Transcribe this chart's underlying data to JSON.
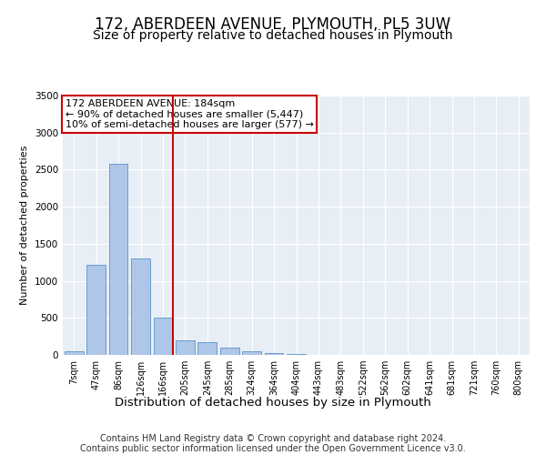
{
  "title": "172, ABERDEEN AVENUE, PLYMOUTH, PL5 3UW",
  "subtitle": "Size of property relative to detached houses in Plymouth",
  "xlabel": "Distribution of detached houses by size in Plymouth",
  "ylabel": "Number of detached properties",
  "categories": [
    "7sqm",
    "47sqm",
    "86sqm",
    "126sqm",
    "166sqm",
    "205sqm",
    "245sqm",
    "285sqm",
    "324sqm",
    "364sqm",
    "404sqm",
    "443sqm",
    "483sqm",
    "522sqm",
    "562sqm",
    "602sqm",
    "641sqm",
    "681sqm",
    "721sqm",
    "760sqm",
    "800sqm"
  ],
  "values": [
    50,
    1220,
    2580,
    1300,
    500,
    200,
    170,
    100,
    50,
    30,
    10,
    5,
    2,
    0,
    0,
    0,
    0,
    0,
    0,
    0,
    0
  ],
  "bar_color": "#aec6e8",
  "bar_edge_color": "#5a96c8",
  "annotation_text": "172 ABERDEEN AVENUE: 184sqm\n← 90% of detached houses are smaller (5,447)\n10% of semi-detached houses are larger (577) →",
  "annotation_box_color": "#ffffff",
  "annotation_box_edge": "#cc0000",
  "ylim": [
    0,
    3500
  ],
  "yticks": [
    0,
    500,
    1000,
    1500,
    2000,
    2500,
    3000,
    3500
  ],
  "plot_bg_color": "#e8eef5",
  "footer": "Contains HM Land Registry data © Crown copyright and database right 2024.\nContains public sector information licensed under the Open Government Licence v3.0.",
  "title_fontsize": 12,
  "subtitle_fontsize": 10,
  "xlabel_fontsize": 9.5,
  "ylabel_fontsize": 8,
  "footer_fontsize": 7,
  "annotation_fontsize": 8,
  "tick_fontsize": 7
}
